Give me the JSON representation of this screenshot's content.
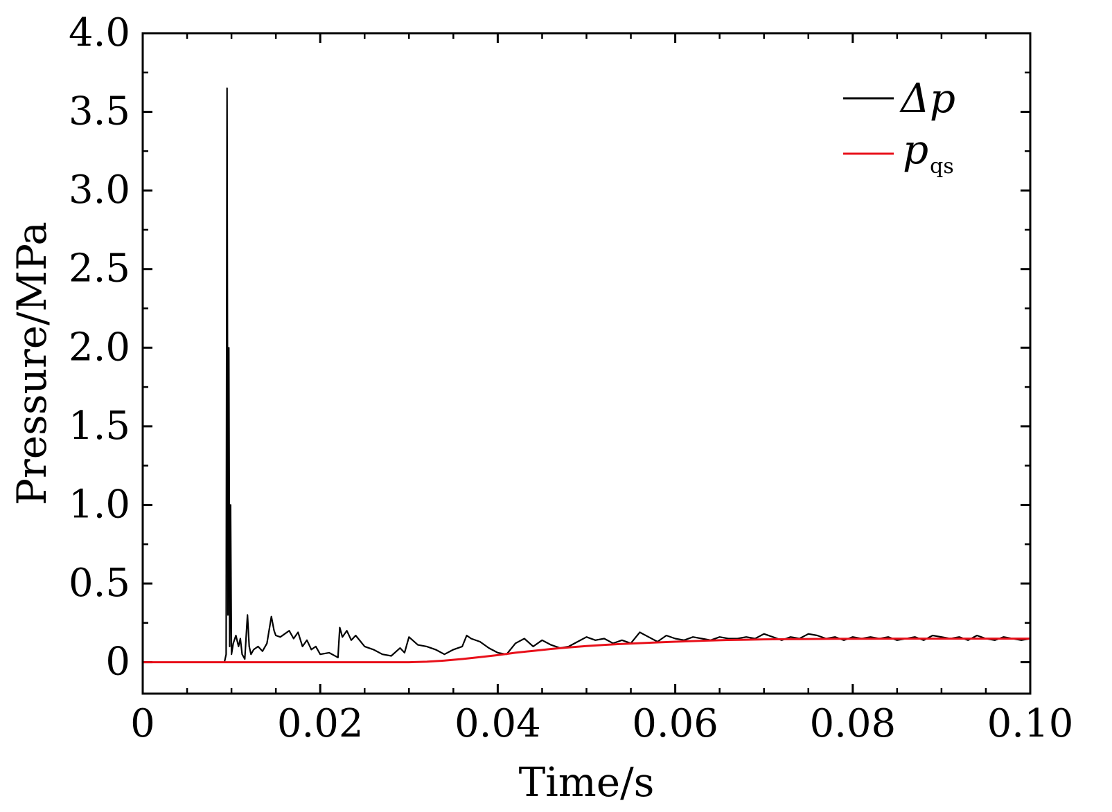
{
  "chart_data": {
    "type": "line",
    "xlabel": "Time/s",
    "ylabel": "Pressure/MPa",
    "xlim": [
      0,
      0.1
    ],
    "ylim": [
      -0.2,
      4.0
    ],
    "x_ticks": [
      0,
      0.02,
      0.04,
      0.06,
      0.08,
      0.1
    ],
    "x_tick_labels": [
      "0",
      "0.02",
      "0.04",
      "0.06",
      "0.08",
      "0.10"
    ],
    "y_ticks": [
      0,
      0.5,
      1.0,
      1.5,
      2.0,
      2.5,
      3.0,
      3.5,
      4.0
    ],
    "y_tick_labels": [
      "0",
      "0.5",
      "1.0",
      "1.5",
      "2.0",
      "2.5",
      "3.0",
      "3.5",
      "4.0"
    ],
    "grid": false,
    "legend_position": "top-right",
    "series": [
      {
        "name": "Δp",
        "legend_main": "Δp",
        "legend_sub": "",
        "color": "#000000",
        "x": [
          0,
          0.005,
          0.0092,
          0.0094,
          0.0095,
          0.0096,
          0.0097,
          0.0098,
          0.0099,
          0.01,
          0.0102,
          0.0105,
          0.0108,
          0.011,
          0.0112,
          0.0115,
          0.0118,
          0.012,
          0.0122,
          0.0125,
          0.013,
          0.0135,
          0.014,
          0.0145,
          0.0148,
          0.015,
          0.0155,
          0.016,
          0.0165,
          0.017,
          0.0175,
          0.018,
          0.0185,
          0.019,
          0.0195,
          0.02,
          0.021,
          0.022,
          0.0222,
          0.0225,
          0.023,
          0.0235,
          0.024,
          0.025,
          0.026,
          0.027,
          0.028,
          0.029,
          0.0295,
          0.03,
          0.031,
          0.032,
          0.033,
          0.034,
          0.035,
          0.036,
          0.0365,
          0.037,
          0.038,
          0.039,
          0.04,
          0.041,
          0.042,
          0.043,
          0.044,
          0.045,
          0.046,
          0.047,
          0.048,
          0.049,
          0.05,
          0.051,
          0.052,
          0.053,
          0.054,
          0.055,
          0.056,
          0.057,
          0.058,
          0.059,
          0.06,
          0.061,
          0.062,
          0.063,
          0.064,
          0.065,
          0.066,
          0.067,
          0.068,
          0.069,
          0.07,
          0.071,
          0.072,
          0.073,
          0.074,
          0.075,
          0.076,
          0.077,
          0.078,
          0.079,
          0.08,
          0.081,
          0.082,
          0.083,
          0.084,
          0.085,
          0.086,
          0.087,
          0.088,
          0.089,
          0.09,
          0.091,
          0.092,
          0.093,
          0.094,
          0.095,
          0.096,
          0.097,
          0.098,
          0.099,
          0.1
        ],
        "y": [
          0,
          0,
          0,
          0.05,
          3.65,
          0.3,
          2.0,
          0.1,
          1.0,
          0.05,
          0.12,
          0.17,
          0.1,
          0.15,
          0.05,
          0.02,
          0.3,
          0.1,
          0.05,
          0.08,
          0.1,
          0.07,
          0.12,
          0.29,
          0.2,
          0.17,
          0.16,
          0.18,
          0.2,
          0.15,
          0.19,
          0.1,
          0.14,
          0.08,
          0.1,
          0.05,
          0.06,
          0.03,
          0.22,
          0.16,
          0.2,
          0.14,
          0.17,
          0.1,
          0.08,
          0.05,
          0.04,
          0.09,
          0.06,
          0.16,
          0.11,
          0.1,
          0.08,
          0.05,
          0.08,
          0.1,
          0.17,
          0.15,
          0.13,
          0.09,
          0.06,
          0.05,
          0.12,
          0.15,
          0.1,
          0.14,
          0.11,
          0.09,
          0.1,
          0.13,
          0.16,
          0.14,
          0.15,
          0.12,
          0.14,
          0.12,
          0.19,
          0.16,
          0.13,
          0.17,
          0.15,
          0.14,
          0.16,
          0.15,
          0.14,
          0.16,
          0.15,
          0.15,
          0.16,
          0.15,
          0.18,
          0.16,
          0.14,
          0.16,
          0.15,
          0.18,
          0.17,
          0.15,
          0.16,
          0.14,
          0.16,
          0.15,
          0.16,
          0.15,
          0.16,
          0.14,
          0.15,
          0.16,
          0.14,
          0.17,
          0.16,
          0.15,
          0.16,
          0.14,
          0.17,
          0.15,
          0.14,
          0.16,
          0.15,
          0.14,
          0.15
        ]
      },
      {
        "name": "p_qs",
        "legend_main": "p",
        "legend_sub": "qs",
        "color": "#e8101a",
        "x": [
          0,
          0.03,
          0.032,
          0.034,
          0.036,
          0.038,
          0.04,
          0.042,
          0.044,
          0.046,
          0.048,
          0.05,
          0.052,
          0.054,
          0.056,
          0.058,
          0.06,
          0.062,
          0.064,
          0.066,
          0.068,
          0.07,
          0.072,
          0.074,
          0.076,
          0.078,
          0.08,
          0.085,
          0.09,
          0.095,
          0.1
        ],
        "y": [
          0,
          0,
          0.003,
          0.01,
          0.02,
          0.032,
          0.045,
          0.06,
          0.072,
          0.084,
          0.094,
          0.103,
          0.11,
          0.116,
          0.121,
          0.126,
          0.13,
          0.134,
          0.138,
          0.141,
          0.143,
          0.145,
          0.146,
          0.147,
          0.148,
          0.149,
          0.149,
          0.15,
          0.15,
          0.15,
          0.15
        ]
      }
    ]
  }
}
